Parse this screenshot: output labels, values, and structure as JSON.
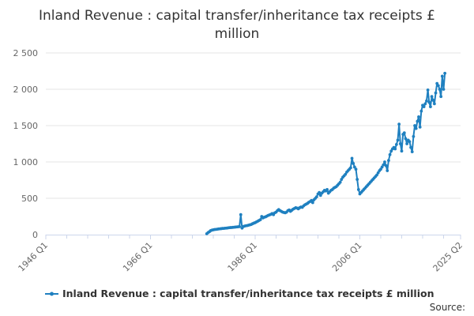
{
  "chart_data": {
    "type": "line",
    "title_lines": [
      "Inland Revenue : capital transfer/inheritance tax receipts £",
      "million"
    ],
    "series": [
      {
        "name": "Inland Revenue : capital transfer/inheritance tax receipts £ million",
        "color": "#1f80c0",
        "points": [
          [
            1976.75,
            12
          ],
          [
            1977.0,
            28
          ],
          [
            1977.25,
            40
          ],
          [
            1977.5,
            55
          ],
          [
            1977.75,
            62
          ],
          [
            1978.0,
            66
          ],
          [
            1978.25,
            70
          ],
          [
            1978.5,
            72
          ],
          [
            1978.75,
            75
          ],
          [
            1979.0,
            78
          ],
          [
            1979.25,
            80
          ],
          [
            1979.5,
            82
          ],
          [
            1979.75,
            85
          ],
          [
            1980.0,
            86
          ],
          [
            1980.25,
            88
          ],
          [
            1980.5,
            90
          ],
          [
            1980.75,
            92
          ],
          [
            1981.0,
            95
          ],
          [
            1981.25,
            97
          ],
          [
            1981.5,
            98
          ],
          [
            1981.75,
            100
          ],
          [
            1982.0,
            102
          ],
          [
            1982.25,
            104
          ],
          [
            1982.5,
            106
          ],
          [
            1982.75,
            108
          ],
          [
            1983.0,
            110
          ],
          [
            1983.25,
            275
          ],
          [
            1983.5,
            90
          ],
          [
            1983.75,
            112
          ],
          [
            1984.0,
            118
          ],
          [
            1984.25,
            122
          ],
          [
            1984.5,
            125
          ],
          [
            1984.75,
            130
          ],
          [
            1985.0,
            135
          ],
          [
            1985.25,
            140
          ],
          [
            1985.5,
            150
          ],
          [
            1985.75,
            158
          ],
          [
            1986.0,
            165
          ],
          [
            1986.25,
            175
          ],
          [
            1986.5,
            185
          ],
          [
            1986.75,
            195
          ],
          [
            1987.0,
            205
          ],
          [
            1987.25,
            250
          ],
          [
            1987.5,
            230
          ],
          [
            1987.75,
            240
          ],
          [
            1988.0,
            245
          ],
          [
            1988.25,
            255
          ],
          [
            1988.5,
            265
          ],
          [
            1988.75,
            272
          ],
          [
            1989.0,
            280
          ],
          [
            1989.25,
            290
          ],
          [
            1989.5,
            275
          ],
          [
            1989.75,
            300
          ],
          [
            1990.0,
            310
          ],
          [
            1990.25,
            330
          ],
          [
            1990.5,
            345
          ],
          [
            1990.75,
            330
          ],
          [
            1991.0,
            320
          ],
          [
            1991.25,
            310
          ],
          [
            1991.5,
            305
          ],
          [
            1991.75,
            300
          ],
          [
            1992.0,
            310
          ],
          [
            1992.25,
            330
          ],
          [
            1992.5,
            340
          ],
          [
            1992.75,
            320
          ],
          [
            1993.0,
            335
          ],
          [
            1993.25,
            350
          ],
          [
            1993.5,
            360
          ],
          [
            1993.75,
            370
          ],
          [
            1994.0,
            365
          ],
          [
            1994.25,
            355
          ],
          [
            1994.5,
            370
          ],
          [
            1994.75,
            380
          ],
          [
            1995.0,
            375
          ],
          [
            1995.25,
            395
          ],
          [
            1995.5,
            410
          ],
          [
            1995.75,
            420
          ],
          [
            1996.0,
            430
          ],
          [
            1996.25,
            445
          ],
          [
            1996.5,
            455
          ],
          [
            1996.75,
            470
          ],
          [
            1997.0,
            440
          ],
          [
            1997.25,
            480
          ],
          [
            1997.5,
            500
          ],
          [
            1997.75,
            520
          ],
          [
            1998.0,
            560
          ],
          [
            1998.25,
            580
          ],
          [
            1998.5,
            540
          ],
          [
            1998.75,
            570
          ],
          [
            1999.0,
            590
          ],
          [
            1999.25,
            610
          ],
          [
            1999.5,
            600
          ],
          [
            1999.75,
            620
          ],
          [
            2000.0,
            570
          ],
          [
            2000.25,
            590
          ],
          [
            2000.5,
            610
          ],
          [
            2000.75,
            620
          ],
          [
            2001.0,
            640
          ],
          [
            2001.25,
            650
          ],
          [
            2001.5,
            660
          ],
          [
            2001.75,
            680
          ],
          [
            2002.0,
            700
          ],
          [
            2002.25,
            720
          ],
          [
            2002.5,
            760
          ],
          [
            2002.75,
            790
          ],
          [
            2003.0,
            810
          ],
          [
            2003.25,
            830
          ],
          [
            2003.5,
            860
          ],
          [
            2003.75,
            880
          ],
          [
            2004.0,
            900
          ],
          [
            2004.25,
            920
          ],
          [
            2004.5,
            1050
          ],
          [
            2004.75,
            980
          ],
          [
            2005.0,
            930
          ],
          [
            2005.25,
            900
          ],
          [
            2005.5,
            760
          ],
          [
            2005.75,
            620
          ],
          [
            2006.0,
            560
          ],
          [
            2006.25,
            580
          ],
          [
            2006.5,
            600
          ],
          [
            2006.75,
            620
          ],
          [
            2007.0,
            640
          ],
          [
            2007.25,
            660
          ],
          [
            2007.5,
            680
          ],
          [
            2007.75,
            700
          ],
          [
            2008.0,
            720
          ],
          [
            2008.25,
            740
          ],
          [
            2008.5,
            760
          ],
          [
            2008.75,
            780
          ],
          [
            2009.0,
            800
          ],
          [
            2009.25,
            820
          ],
          [
            2009.5,
            850
          ],
          [
            2009.75,
            880
          ],
          [
            2010.0,
            900
          ],
          [
            2010.25,
            930
          ],
          [
            2010.5,
            960
          ],
          [
            2010.75,
            1000
          ],
          [
            2011.0,
            950
          ],
          [
            2011.25,
            880
          ],
          [
            2011.5,
            1020
          ],
          [
            2011.75,
            1100
          ],
          [
            2012.0,
            1150
          ],
          [
            2012.25,
            1180
          ],
          [
            2012.5,
            1200
          ],
          [
            2012.75,
            1180
          ],
          [
            2013.0,
            1240
          ],
          [
            2013.25,
            1300
          ],
          [
            2013.5,
            1520
          ],
          [
            2013.75,
            1250
          ],
          [
            2014.0,
            1150
          ],
          [
            2014.25,
            1380
          ],
          [
            2014.5,
            1400
          ],
          [
            2014.75,
            1320
          ],
          [
            2015.0,
            1250
          ],
          [
            2015.25,
            1300
          ],
          [
            2015.5,
            1280
          ],
          [
            2015.75,
            1200
          ],
          [
            2016.0,
            1140
          ],
          [
            2016.25,
            1350
          ],
          [
            2016.5,
            1500
          ],
          [
            2016.75,
            1460
          ],
          [
            2017.0,
            1560
          ],
          [
            2017.25,
            1620
          ],
          [
            2017.5,
            1480
          ],
          [
            2017.75,
            1700
          ],
          [
            2018.0,
            1780
          ],
          [
            2018.25,
            1760
          ],
          [
            2018.5,
            1800
          ],
          [
            2018.75,
            1840
          ],
          [
            2019.0,
            1990
          ],
          [
            2019.25,
            1820
          ],
          [
            2019.5,
            1760
          ],
          [
            2019.75,
            1900
          ],
          [
            2020.0,
            1850
          ],
          [
            2020.25,
            1800
          ],
          [
            2020.5,
            1950
          ],
          [
            2020.75,
            2080
          ],
          [
            2021.0,
            2050
          ],
          [
            2021.25,
            2000
          ],
          [
            2021.5,
            1900
          ],
          [
            2021.75,
            2180
          ],
          [
            2022.0,
            2000
          ],
          [
            2022.25,
            2220
          ]
        ]
      }
    ],
    "x_ticks": [
      {
        "label": "1946 Q1",
        "value": 1946.0
      },
      {
        "label": "1966 Q1",
        "value": 1966.0
      },
      {
        "label": "1986 Q1",
        "value": 1986.0
      },
      {
        "label": "2006 Q1",
        "value": 2006.0
      },
      {
        "label": "2025 Q2",
        "value": 2025.25
      }
    ],
    "xlim": [
      1946.0,
      2025.25
    ],
    "x_minor_tick_step": 4,
    "y_ticks": [
      {
        "label": "0",
        "value": 0
      },
      {
        "label": "500",
        "value": 500
      },
      {
        "label": "1 000",
        "value": 1000
      },
      {
        "label": "1 500",
        "value": 1500
      },
      {
        "label": "2 000",
        "value": 2000
      },
      {
        "label": "2 500",
        "value": 2500
      }
    ],
    "ylim": [
      0,
      2500
    ],
    "grid": "horizontal",
    "legend_position": "bottom",
    "credit": "Source:"
  }
}
